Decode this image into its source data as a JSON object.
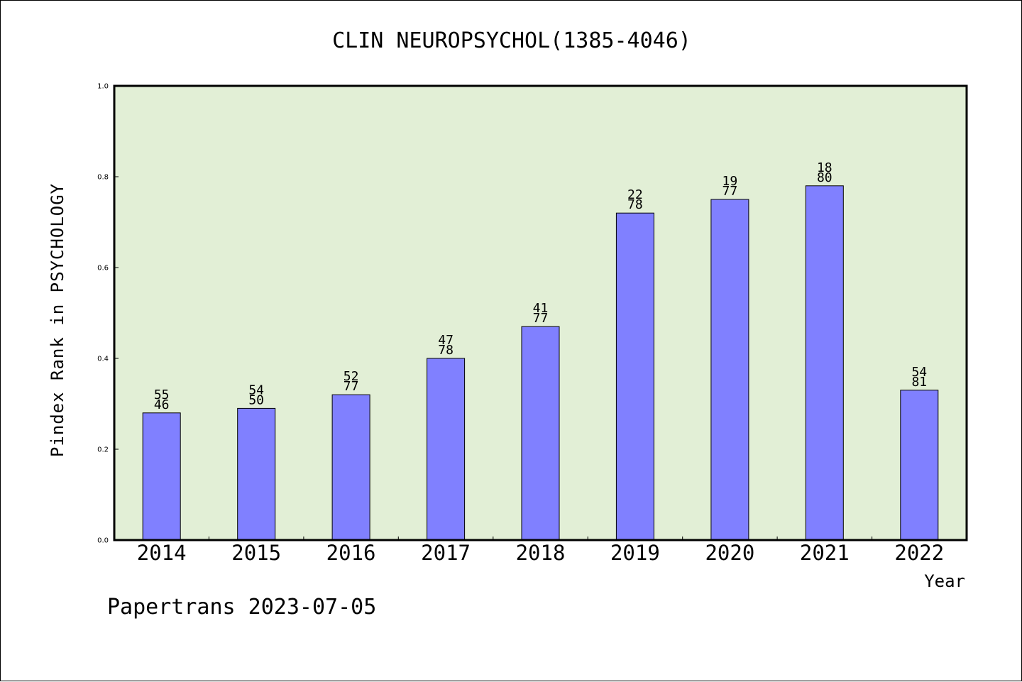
{
  "chart_data": {
    "type": "bar",
    "title": "CLIN NEUROPSYCHOL(1385-4046)",
    "xlabel": "Year",
    "ylabel": "Pindex Rank in PSYCHOLOGY",
    "ylim": [
      0,
      1.0
    ],
    "yticks": [
      "0.0",
      "0.2",
      "0.4",
      "0.6",
      "0.8",
      "1.0"
    ],
    "categories": [
      "2014",
      "2015",
      "2016",
      "2017",
      "2018",
      "2019",
      "2020",
      "2021",
      "2022"
    ],
    "values": [
      0.28,
      0.29,
      0.32,
      0.4,
      0.47,
      0.72,
      0.75,
      0.78,
      0.33
    ],
    "rank_labels": [
      "55",
      "54",
      "52",
      "47",
      "41",
      "22",
      "19",
      "18",
      "54"
    ],
    "total_labels": [
      "46",
      "50",
      "77",
      "78",
      "77",
      "78",
      "77",
      "80",
      "81"
    ],
    "grid": false,
    "colors": {
      "bar": "#8080ff",
      "plot_bg": "#e2efd6"
    }
  },
  "footer": "Papertrans 2023-07-05"
}
